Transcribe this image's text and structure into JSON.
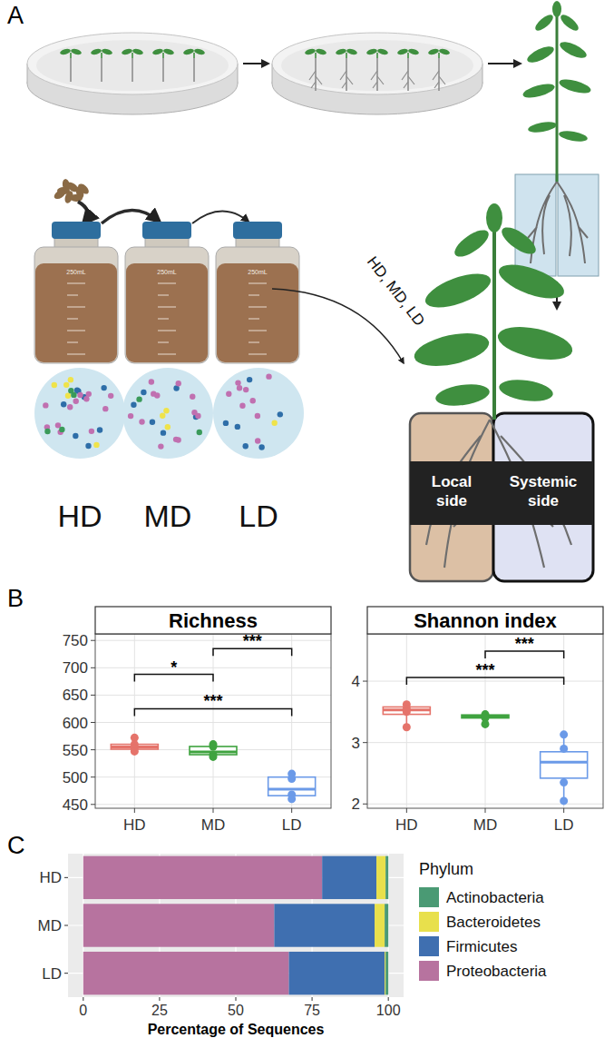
{
  "panel_labels": [
    "A",
    "B",
    "C"
  ],
  "diagram": {
    "bottle_label": "250mL",
    "inocula": [
      "HD",
      "MD",
      "LD"
    ],
    "arrow_label": "HD, MD, LD",
    "compartments": [
      "Local side",
      "Systemic side"
    ]
  },
  "chart_data": [
    {
      "type": "box",
      "title": "Richness",
      "categories": [
        "HD",
        "MD",
        "LD"
      ],
      "colors": [
        "#e5736a",
        "#3fa33f",
        "#6b9ae8"
      ],
      "boxes": [
        {
          "min": 546,
          "q1": 551,
          "median": 555,
          "q3": 560,
          "max": 565,
          "points": [
            572,
            560,
            553,
            547
          ]
        },
        {
          "min": 537,
          "q1": 541,
          "median": 546,
          "q3": 556,
          "max": 560,
          "points": [
            560,
            556,
            541,
            537
          ]
        },
        {
          "min": 460,
          "q1": 466,
          "median": 478,
          "q3": 500,
          "max": 506,
          "points": [
            506,
            497,
            468,
            460
          ]
        }
      ],
      "ylim": [
        443,
        762
      ],
      "yticks": [
        450,
        500,
        550,
        600,
        650,
        700,
        750
      ],
      "grid": true,
      "annotations": [
        {
          "from": 0,
          "to": 1,
          "y": 688,
          "label": "*"
        },
        {
          "from": 1,
          "to": 2,
          "y": 735,
          "label": "***"
        },
        {
          "from": 0,
          "to": 2,
          "y": 625,
          "label": "***"
        }
      ]
    },
    {
      "type": "box",
      "title": "Shannon index",
      "categories": [
        "HD",
        "MD",
        "LD"
      ],
      "colors": [
        "#e5736a",
        "#3fa33f",
        "#6b9ae8"
      ],
      "boxes": [
        {
          "min": 3.25,
          "q1": 3.46,
          "median": 3.53,
          "q3": 3.58,
          "max": 3.62,
          "points": [
            3.62,
            3.55,
            3.5,
            3.25
          ]
        },
        {
          "min": 3.3,
          "q1": 3.4,
          "median": 3.43,
          "q3": 3.45,
          "max": 3.46,
          "points": [
            3.46,
            3.43,
            3.4,
            3.3
          ]
        },
        {
          "min": 2.05,
          "q1": 2.42,
          "median": 2.68,
          "q3": 2.85,
          "max": 3.13,
          "points": [
            3.13,
            2.9,
            2.35,
            2.05
          ]
        }
      ],
      "ylim": [
        1.93,
        4.77
      ],
      "yticks": [
        2,
        3,
        4
      ],
      "grid": true,
      "annotations": [
        {
          "from": 1,
          "to": 2,
          "y": 4.49,
          "label": "***"
        },
        {
          "from": 0,
          "to": 2,
          "y": 4.06,
          "label": "***"
        }
      ]
    },
    {
      "type": "bar",
      "orientation": "horizontal",
      "stacked": true,
      "categories": [
        "HD",
        "MD",
        "LD"
      ],
      "series": [
        {
          "name": "Actinobacteria",
          "color": "#4a9a74",
          "values": [
            0.9,
            1.2,
            0.9
          ]
        },
        {
          "name": "Bacteroidetes",
          "color": "#e8e04c",
          "values": [
            3.0,
            3.3,
            0.3
          ]
        },
        {
          "name": "Firmicutes",
          "color": "#3f6fb0",
          "values": [
            17.8,
            32.9,
            31.4
          ]
        },
        {
          "name": "Proteobacteria",
          "color": "#b7739f",
          "values": [
            78.3,
            62.6,
            67.4
          ]
        }
      ],
      "xlabel": "Percentage of Sequences",
      "legend_title": "Phylum",
      "legend": "right",
      "xlim": [
        -5,
        105
      ],
      "xticks": [
        0,
        25,
        50,
        75,
        100
      ],
      "grid": true
    }
  ]
}
